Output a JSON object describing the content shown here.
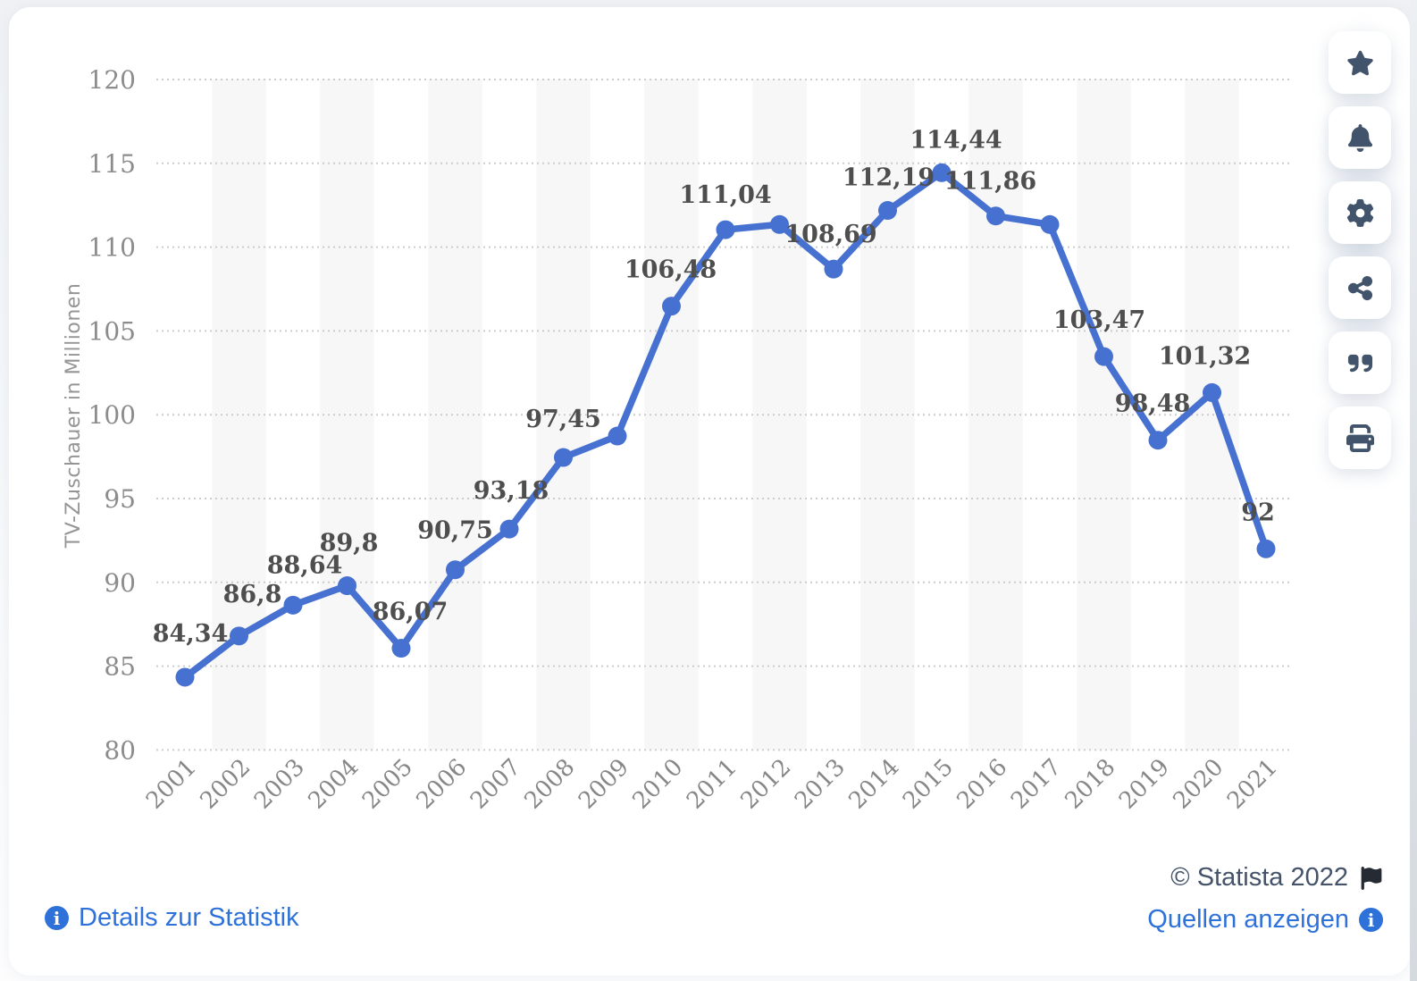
{
  "theme": {
    "page_background": "#f2f4f6",
    "card_background": "#ffffff",
    "accent_blue": "#4671d0",
    "link_blue": "#2e71d9",
    "icon_slate": "#42546b",
    "copyright_slate": "#44536a",
    "flag_dark": "#262b33"
  },
  "chart_data": {
    "type": "line",
    "title": "",
    "ylabel": "TV-Zuschauer in Millionen",
    "xlabel": "",
    "x": [
      "2001",
      "2002",
      "2003",
      "2004",
      "2005",
      "2006",
      "2007",
      "2008",
      "2009",
      "2010",
      "2011",
      "2012",
      "2013",
      "2014",
      "2015",
      "2016",
      "2017",
      "2018",
      "2019",
      "2020",
      "2021"
    ],
    "series": [
      {
        "name": "TV-Zuschauer in Millionen",
        "values": [
          84.34,
          86.8,
          88.64,
          89.8,
          86.07,
          90.75,
          93.18,
          97.45,
          98.73,
          106.48,
          111.04,
          111.35,
          108.69,
          112.19,
          114.44,
          111.86,
          111.35,
          103.47,
          98.48,
          101.32,
          92
        ]
      }
    ],
    "point_labels": [
      "84,34",
      "86,8",
      "88,64",
      "89,8",
      "86,07",
      "90,75",
      "93,18",
      "97,45",
      null,
      "106,48",
      "111,04",
      null,
      "108,69",
      "112,19",
      "114,44",
      "111,86",
      null,
      "103,47",
      "98,48",
      "101,32",
      "92"
    ],
    "ylim": [
      80,
      120
    ],
    "ytick_step": 5,
    "ytick_labels": [
      "120",
      "115",
      "110",
      "105",
      "100",
      "95",
      "90",
      "85",
      "80"
    ],
    "grid": "horizontal-dotted",
    "column_banding": true,
    "legend": "none",
    "line_color": "#4671d0",
    "point_color": "#4671d0",
    "grid_color": "#cccccc",
    "band_color": "#f7f7f8",
    "label_offsets": {
      "2001": [
        6,
        -6
      ],
      "2002": [
        15,
        -4
      ],
      "2003": [
        13,
        -2
      ],
      "2004": [
        2,
        -5
      ],
      "2005": [
        10,
        2
      ],
      "2006": [
        0,
        -1
      ],
      "2007": [
        2,
        0
      ],
      "2008": [
        0,
        0
      ],
      "2010": [
        -1,
        2
      ],
      "2011": [
        0,
        4
      ],
      "2013": [
        -3,
        4
      ],
      "2014": [
        1,
        6
      ],
      "2015": [
        16,
        6
      ],
      "2016": [
        -6,
        4
      ],
      "2018": [
        -5,
        2
      ],
      "2019": [
        -6,
        2
      ],
      "2020": [
        -8,
        2
      ],
      "2021": [
        -9,
        2
      ]
    }
  },
  "footer": {
    "details_label": "Details zur Statistik",
    "copyright": "© Statista 2022",
    "sources_label": "Quellen anzeigen",
    "info_icon": "info-circle-icon",
    "flag_icon": "flag-icon"
  },
  "toolbar": {
    "buttons": [
      {
        "name": "favorite-button",
        "icon": "star-icon"
      },
      {
        "name": "notification-button",
        "icon": "bell-icon"
      },
      {
        "name": "settings-button",
        "icon": "gear-icon"
      },
      {
        "name": "share-button",
        "icon": "share-icon"
      },
      {
        "name": "cite-button",
        "icon": "quote-icon"
      },
      {
        "name": "print-button",
        "icon": "print-icon"
      }
    ]
  }
}
